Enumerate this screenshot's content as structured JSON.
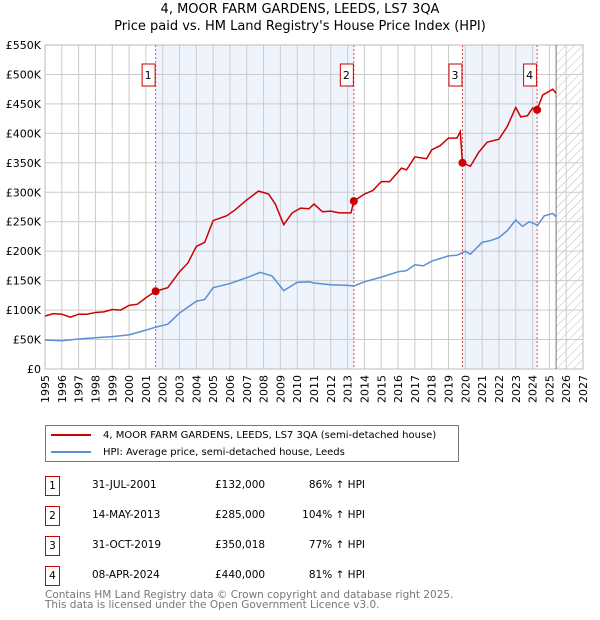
{
  "chart_data": {
    "type": "line",
    "title": "4, MOOR FARM GARDENS, LEEDS, LS7 3QA",
    "subtitle": "Price paid vs. HM Land Registry's House Price Index (HPI)",
    "xlim": [
      1995,
      2027
    ],
    "ylim": [
      0,
      550000
    ],
    "x_ticks": [
      "1995",
      "1996",
      "1997",
      "1998",
      "1999",
      "2000",
      "2001",
      "2002",
      "2003",
      "2004",
      "2005",
      "2006",
      "2007",
      "2008",
      "2009",
      "2010",
      "2011",
      "2012",
      "2013",
      "2014",
      "2015",
      "2016",
      "2017",
      "2018",
      "2019",
      "2020",
      "2021",
      "2022",
      "2023",
      "2024",
      "2025",
      "2026",
      "2027"
    ],
    "y_ticks": [
      {
        "v": 0,
        "label": "£0"
      },
      {
        "v": 50000,
        "label": "£50K"
      },
      {
        "v": 100000,
        "label": "£100K"
      },
      {
        "v": 150000,
        "label": "£150K"
      },
      {
        "v": 200000,
        "label": "£200K"
      },
      {
        "v": 250000,
        "label": "£250K"
      },
      {
        "v": 300000,
        "label": "£300K"
      },
      {
        "v": 350000,
        "label": "£350K"
      },
      {
        "v": 400000,
        "label": "£400K"
      },
      {
        "v": 450000,
        "label": "£450K"
      },
      {
        "v": 500000,
        "label": "£500K"
      },
      {
        "v": 550000,
        "label": "£550K"
      }
    ],
    "grid": true,
    "shaded_periods": [
      [
        2001.58,
        2013.37
      ],
      [
        2019.83,
        2024.27
      ]
    ],
    "forecast_hatch_from": 2025.4,
    "series": [
      {
        "name": "4, MOOR FARM GARDENS, LEEDS, LS7 3QA (semi-detached house)",
        "color": "#cc0000",
        "x": [
          1995,
          1995.5,
          1996,
          1996.5,
          1997,
          1997.5,
          1998,
          1998.5,
          1999,
          1999.5,
          2000,
          2000.5,
          2001,
          2001.58,
          2002.3,
          2003,
          2003.5,
          2004,
          2004.5,
          2005,
          2005.8,
          2006.3,
          2007,
          2007.7,
          2008.3,
          2008.7,
          2009.2,
          2009.7,
          2010.2,
          2010.7,
          2011,
          2011.5,
          2012,
          2012.5,
          2013.2,
          2013.37,
          2014,
          2014.5,
          2015,
          2015.5,
          2016.2,
          2016.5,
          2017,
          2017.7,
          2018,
          2018.5,
          2019,
          2019.5,
          2019.7,
          2019.83,
          2020.3,
          2020.8,
          2021.3,
          2022,
          2022.5,
          2023,
          2023.3,
          2023.7,
          2024,
          2024.27,
          2024.6,
          2025.2,
          2025.4
        ],
        "y": [
          90000,
          94000,
          93000,
          88000,
          93000,
          93000,
          96000,
          97000,
          101000,
          100000,
          108000,
          110000,
          121000,
          132000,
          138000,
          165000,
          180000,
          208000,
          215000,
          252000,
          260000,
          270000,
          287000,
          302000,
          297000,
          280000,
          245000,
          265000,
          273000,
          272000,
          280000,
          267000,
          268000,
          265000,
          265000,
          285000,
          297000,
          303000,
          318000,
          318000,
          341000,
          338000,
          360000,
          357000,
          372000,
          379000,
          392000,
          392000,
          403000,
          350018,
          344000,
          368000,
          385000,
          390000,
          412000,
          444000,
          428000,
          430000,
          443000,
          440000,
          465000,
          475000,
          468000
        ]
      },
      {
        "name": "HPI: Average price, semi-detached house, Leeds",
        "color": "#5b8fd6",
        "x": [
          1995,
          1996,
          1997,
          1998,
          1999,
          2000,
          2001,
          2001.58,
          2002.3,
          2003,
          2004,
          2004.5,
          2005,
          2006,
          2007,
          2007.8,
          2008.5,
          2009.2,
          2010,
          2010.7,
          2011,
          2012,
          2013,
          2013.37,
          2014,
          2015,
          2016,
          2016.5,
          2017,
          2017.5,
          2018,
          2019,
          2019.5,
          2020,
          2020.3,
          2021,
          2021.5,
          2022,
          2022.5,
          2023,
          2023.4,
          2023.8,
          2024,
          2024.3,
          2024.7,
          2025.2,
          2025.4
        ],
        "y": [
          49000,
          48000,
          51000,
          53000,
          55000,
          58000,
          66000,
          71000,
          76000,
          95000,
          115000,
          118000,
          138000,
          145000,
          155000,
          164000,
          158000,
          133000,
          147000,
          148000,
          146000,
          143000,
          142000,
          141000,
          148000,
          156000,
          165000,
          167000,
          177000,
          175000,
          183000,
          192000,
          193000,
          200000,
          195000,
          215000,
          218000,
          223000,
          235000,
          253000,
          242000,
          250000,
          248000,
          244000,
          260000,
          264000,
          258000
        ]
      }
    ],
    "sales": [
      {
        "n": "1",
        "x": 2001.58,
        "y": 132000,
        "date": "31-JUL-2001",
        "price": "£132,000",
        "hpi": "86% ↑ HPI"
      },
      {
        "n": "2",
        "x": 2013.37,
        "y": 285000,
        "date": "14-MAY-2013",
        "price": "£285,000",
        "hpi": "104% ↑ HPI"
      },
      {
        "n": "3",
        "x": 2019.83,
        "y": 350018,
        "date": "31-OCT-2019",
        "price": "£350,018",
        "hpi": "77% ↑ HPI"
      },
      {
        "n": "4",
        "x": 2024.27,
        "y": 440000,
        "date": "08-APR-2024",
        "price": "£440,000",
        "hpi": "81% ↑ HPI"
      }
    ]
  },
  "footer": {
    "line1": "Contains HM Land Registry data © Crown copyright and database right 2025.",
    "line2": "This data is licensed under the Open Government Licence v3.0."
  }
}
